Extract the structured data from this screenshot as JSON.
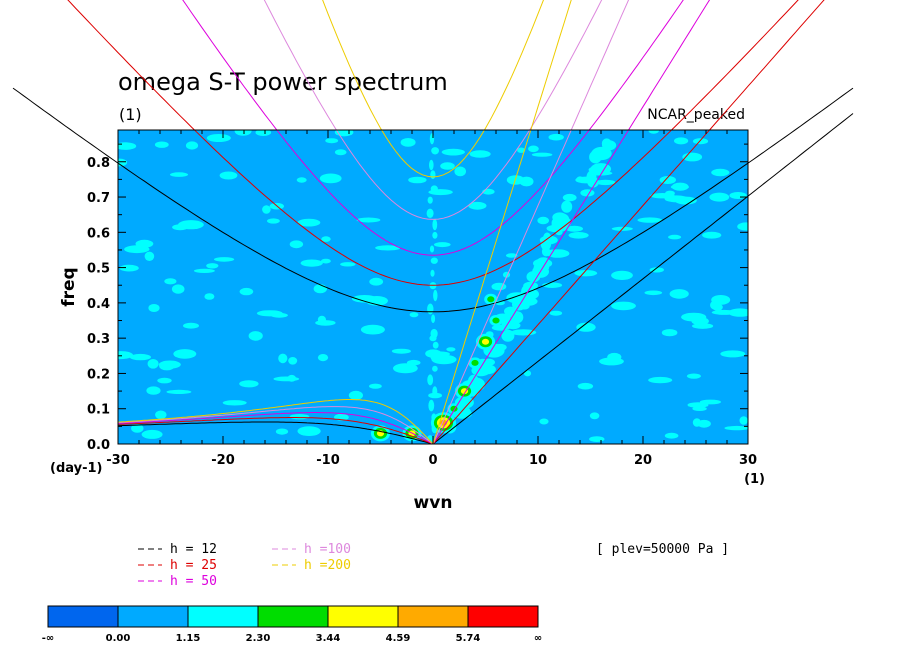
{
  "chart_data": {
    "type": "heatmap",
    "title": "omega S-T power spectrum",
    "subtitle_left": "(1)",
    "subtitle_right": "NCAR_peaked",
    "xlabel": "wvn",
    "ylabel": "freq",
    "x_units": "(1)",
    "y_units": "(day-1)",
    "xlim": [
      -30,
      30
    ],
    "ylim": [
      0,
      0.89
    ],
    "x_ticks": [
      -30,
      -20,
      -10,
      0,
      10,
      20,
      30
    ],
    "x_tick_labels": [
      "-30",
      "-20",
      "-10",
      "0",
      "10",
      "20",
      "30"
    ],
    "y_ticks": [
      0,
      0.1,
      0.2,
      0.3,
      0.4,
      0.5,
      0.6,
      0.7,
      0.8
    ],
    "y_tick_labels": [
      "0.0",
      "0.1",
      "0.2",
      "0.3",
      "0.4",
      "0.5",
      "0.6",
      "0.7",
      "0.8"
    ],
    "annotation": "[ plev=50000 Pa ]",
    "background_level_color": "#00aaff",
    "dispersion_curves": [
      {
        "h": 12,
        "label": "h = 12",
        "color": "#000000"
      },
      {
        "h": 25,
        "label": "h = 25",
        "color": "#dd0000"
      },
      {
        "h": 50,
        "label": "h = 50",
        "color": "#dd00dd"
      },
      {
        "h": 100,
        "label": "h =100",
        "color": "#dd88dd"
      },
      {
        "h": 200,
        "label": "h =200",
        "color": "#eecc00"
      }
    ],
    "spectral_peaks": [
      {
        "x": 0,
        "y": 0.3,
        "level": 2
      },
      {
        "x": 1,
        "y": 0.06,
        "level": 5
      },
      {
        "x": 2,
        "y": 0.1,
        "level": 3
      },
      {
        "x": 3,
        "y": 0.15,
        "level": 4
      },
      {
        "x": 4,
        "y": 0.23,
        "level": 3
      },
      {
        "x": 5,
        "y": 0.29,
        "level": 4
      },
      {
        "x": 6,
        "y": 0.35,
        "level": 3
      },
      {
        "x": 5.5,
        "y": 0.41,
        "level": 3
      },
      {
        "x": 7,
        "y": 0.48,
        "level": 2
      },
      {
        "x": -2,
        "y": 0.03,
        "level": 4
      },
      {
        "x": -5,
        "y": 0.03,
        "level": 4
      },
      {
        "x": 9,
        "y": 0.2,
        "level": 2
      },
      {
        "x": 12,
        "y": 0.6,
        "level": 2
      },
      {
        "x": 14,
        "y": 0.75,
        "level": 2
      }
    ],
    "colorbar": {
      "labels": [
        "-∞",
        "0.00",
        "1.15",
        "2.30",
        "3.44",
        "4.59",
        "5.74",
        "∞"
      ],
      "colors": [
        "#0066ee",
        "#00aaff",
        "#00ffff",
        "#00dd00",
        "#ffff00",
        "#ffaa00",
        "#ff0000"
      ]
    }
  }
}
